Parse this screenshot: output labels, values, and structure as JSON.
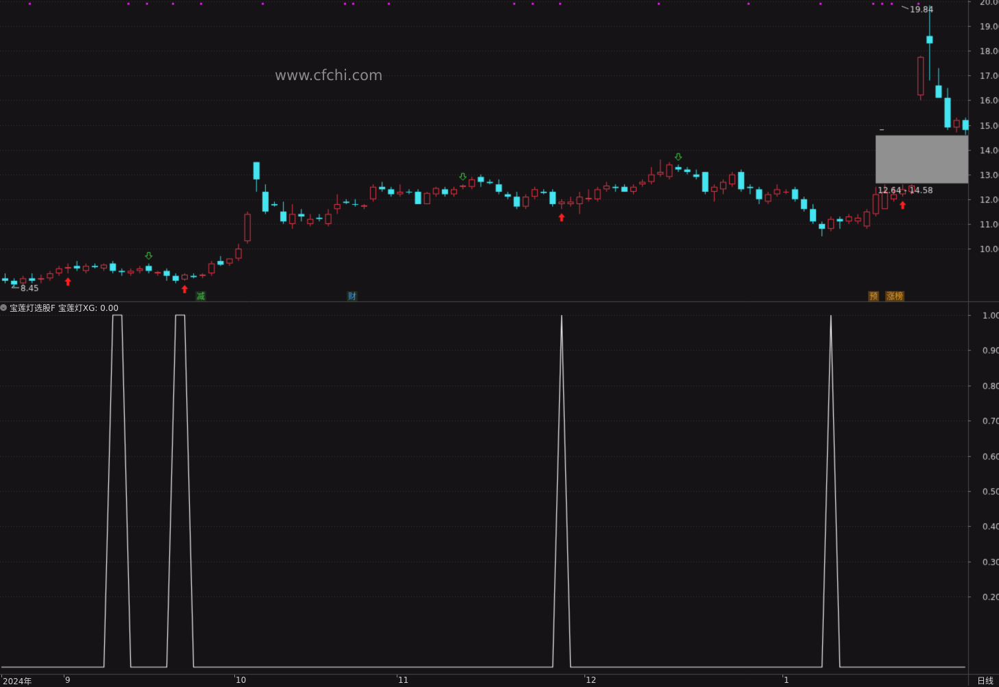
{
  "watermark": "www.cfchi.com",
  "colors": {
    "background": "#151315",
    "up": "#e8394a",
    "down": "#44e4f0",
    "grid": "#3a3a3a",
    "marker_dots": "#d024d8",
    "signal_line": "#ffffff",
    "zone": "#909090"
  },
  "price_axis": {
    "ticks": [
      "10.00",
      "11.00",
      "12.00",
      "13.00",
      "14.00",
      "15.00",
      "16.00",
      "17.00",
      "18.00",
      "19.00",
      "20.00"
    ],
    "range": [
      8.0,
      20.0
    ]
  },
  "price_annotations": {
    "high_label": "19.84",
    "low_label": "8.45",
    "zone_label": "12.64 - 14.58",
    "zone_low": 12.64,
    "zone_high": 14.58
  },
  "event_tags": [
    {
      "text": "减",
      "color": "#49c74f"
    },
    {
      "text": "财",
      "color": "#3aa0ff"
    },
    {
      "text": "预",
      "color": "#e0a030"
    },
    {
      "text": "涨榜",
      "color": "#e0a030"
    }
  ],
  "indicator": {
    "toggle_icon": "chevron-down-icon",
    "name": "宝莲灯选股F",
    "series_label": "宝莲灯XG: 0.00",
    "axis_ticks": [
      "0.20",
      "0.30",
      "0.40",
      "0.50",
      "0.60",
      "0.70",
      "0.80",
      "0.90",
      "1.00"
    ]
  },
  "x_axis": {
    "labels": [
      "2024年",
      "9",
      "10",
      "11",
      "12",
      "1"
    ]
  },
  "period_label": "日线",
  "chart_data": [
    {
      "type": "candlestick",
      "title": "",
      "ylim": [
        8.0,
        20.0
      ],
      "ohlc": [
        [
          8.8,
          9.0,
          8.6,
          8.7
        ],
        [
          8.7,
          8.8,
          8.45,
          8.55
        ],
        [
          8.6,
          8.9,
          8.5,
          8.8
        ],
        [
          8.8,
          9.0,
          8.6,
          8.7
        ],
        [
          8.75,
          8.95,
          8.6,
          8.8
        ],
        [
          8.8,
          9.1,
          8.7,
          9.0
        ],
        [
          9.0,
          9.3,
          8.9,
          9.2
        ],
        [
          9.2,
          9.4,
          9.0,
          9.25
        ],
        [
          9.3,
          9.5,
          9.1,
          9.2
        ],
        [
          9.1,
          9.4,
          9.0,
          9.3
        ],
        [
          9.3,
          9.4,
          9.2,
          9.25
        ],
        [
          9.2,
          9.4,
          9.1,
          9.35
        ],
        [
          9.4,
          9.5,
          9.0,
          9.1
        ],
        [
          9.1,
          9.2,
          8.9,
          9.05
        ],
        [
          9.0,
          9.2,
          8.9,
          9.1
        ],
        [
          9.1,
          9.3,
          9.0,
          9.2
        ],
        [
          9.3,
          9.4,
          9.0,
          9.1
        ],
        [
          9.0,
          9.1,
          8.9,
          9.05
        ],
        [
          9.1,
          9.2,
          8.7,
          8.9
        ],
        [
          8.9,
          9.0,
          8.6,
          8.7
        ],
        [
          8.75,
          9.0,
          8.7,
          8.95
        ],
        [
          8.9,
          9.0,
          8.8,
          8.85
        ],
        [
          8.9,
          9.0,
          8.8,
          8.95
        ],
        [
          9.0,
          9.5,
          8.9,
          9.4
        ],
        [
          9.5,
          9.7,
          9.3,
          9.35
        ],
        [
          9.4,
          9.6,
          9.3,
          9.6
        ],
        [
          9.6,
          10.2,
          9.5,
          10.0
        ],
        [
          10.3,
          11.5,
          10.2,
          11.4
        ],
        [
          13.5,
          13.5,
          12.3,
          12.8
        ],
        [
          12.3,
          12.6,
          11.4,
          11.5
        ],
        [
          11.8,
          11.9,
          11.7,
          11.75
        ],
        [
          11.5,
          11.9,
          11.0,
          11.1
        ],
        [
          11.0,
          11.8,
          10.8,
          11.4
        ],
        [
          11.4,
          11.6,
          11.1,
          11.3
        ],
        [
          11.0,
          11.4,
          10.9,
          11.2
        ],
        [
          11.25,
          11.4,
          11.1,
          11.2
        ],
        [
          11.0,
          11.6,
          10.9,
          11.4
        ],
        [
          11.6,
          12.2,
          11.4,
          11.8
        ],
        [
          11.9,
          12.0,
          11.8,
          11.85
        ],
        [
          11.8,
          12.0,
          11.7,
          11.78
        ],
        [
          11.7,
          11.8,
          11.6,
          11.75
        ],
        [
          12.0,
          12.6,
          11.9,
          12.5
        ],
        [
          12.5,
          12.7,
          12.3,
          12.4
        ],
        [
          12.4,
          12.5,
          12.1,
          12.2
        ],
        [
          12.2,
          12.6,
          12.1,
          12.3
        ],
        [
          12.3,
          12.4,
          12.2,
          12.28
        ],
        [
          12.3,
          12.4,
          11.8,
          11.8
        ],
        [
          11.8,
          12.3,
          11.8,
          12.25
        ],
        [
          12.2,
          12.5,
          12.1,
          12.45
        ],
        [
          12.4,
          12.5,
          12.1,
          12.2
        ],
        [
          12.2,
          12.5,
          12.1,
          12.4
        ],
        [
          12.5,
          12.6,
          12.4,
          12.55
        ],
        [
          12.5,
          12.9,
          12.4,
          12.8
        ],
        [
          12.9,
          13.0,
          12.5,
          12.7
        ],
        [
          12.7,
          12.8,
          12.6,
          12.65
        ],
        [
          12.6,
          12.8,
          12.2,
          12.3
        ],
        [
          12.2,
          12.3,
          12.0,
          12.1
        ],
        [
          12.1,
          12.3,
          11.6,
          11.7
        ],
        [
          11.7,
          12.2,
          11.6,
          12.1
        ],
        [
          12.1,
          12.5,
          12.0,
          12.4
        ],
        [
          12.3,
          12.4,
          12.2,
          12.25
        ],
        [
          12.3,
          12.4,
          11.7,
          11.8
        ],
        [
          11.8,
          12.0,
          11.6,
          11.9
        ],
        [
          11.8,
          12.1,
          11.7,
          11.9
        ],
        [
          11.8,
          12.3,
          11.4,
          12.1
        ],
        [
          12.0,
          12.4,
          11.9,
          12.05
        ],
        [
          12.0,
          12.5,
          11.9,
          12.4
        ],
        [
          12.4,
          12.7,
          12.3,
          12.55
        ],
        [
          12.5,
          12.6,
          12.3,
          12.45
        ],
        [
          12.5,
          12.6,
          12.3,
          12.3
        ],
        [
          12.3,
          12.6,
          12.2,
          12.5
        ],
        [
          12.6,
          12.8,
          12.5,
          12.7
        ],
        [
          12.7,
          13.3,
          12.6,
          13.0
        ],
        [
          13.0,
          13.6,
          12.9,
          13.1
        ],
        [
          12.9,
          13.5,
          12.8,
          13.4
        ],
        [
          13.3,
          13.4,
          13.1,
          13.2
        ],
        [
          13.2,
          13.3,
          13.0,
          13.1
        ],
        [
          13.0,
          13.2,
          12.8,
          12.9
        ],
        [
          13.1,
          13.1,
          12.2,
          12.3
        ],
        [
          12.3,
          12.6,
          11.9,
          12.5
        ],
        [
          12.4,
          12.8,
          12.2,
          12.7
        ],
        [
          12.6,
          13.1,
          12.5,
          13.0
        ],
        [
          13.1,
          13.2,
          12.3,
          12.4
        ],
        [
          12.5,
          12.6,
          12.2,
          12.45
        ],
        [
          12.4,
          12.5,
          11.8,
          12.0
        ],
        [
          11.9,
          12.3,
          11.8,
          12.2
        ],
        [
          12.2,
          12.6,
          12.1,
          12.4
        ],
        [
          12.3,
          12.4,
          12.2,
          12.3
        ],
        [
          12.4,
          12.5,
          11.9,
          12.0
        ],
        [
          12.0,
          12.1,
          11.5,
          11.6
        ],
        [
          11.6,
          11.8,
          11.0,
          11.1
        ],
        [
          11.0,
          11.1,
          10.5,
          10.8
        ],
        [
          10.8,
          11.3,
          10.7,
          11.2
        ],
        [
          11.2,
          11.3,
          10.8,
          11.1
        ],
        [
          11.1,
          11.4,
          11.0,
          11.3
        ],
        [
          11.1,
          11.4,
          11.0,
          11.25
        ],
        [
          10.9,
          11.6,
          10.8,
          11.5
        ],
        [
          11.4,
          12.5,
          11.3,
          12.2
        ],
        [
          11.6,
          12.6,
          11.6,
          12.3
        ],
        [
          12.0,
          12.5,
          11.9,
          12.2
        ],
        [
          12.2,
          12.6,
          12.1,
          12.4
        ],
        [
          12.3,
          12.6,
          12.2,
          12.55
        ],
        [
          16.2,
          17.8,
          16.0,
          17.75
        ],
        [
          18.6,
          19.84,
          16.8,
          18.3
        ],
        [
          16.6,
          17.3,
          16.2,
          16.1
        ],
        [
          16.1,
          16.5,
          14.8,
          14.9
        ],
        [
          14.9,
          15.3,
          14.7,
          15.2
        ],
        [
          15.2,
          15.3,
          14.6,
          14.8
        ]
      ],
      "signal_up_arrows": [
        7,
        20,
        62,
        100
      ],
      "signal_down_arrows": [
        16,
        51,
        75
      ]
    },
    {
      "type": "line",
      "title": "",
      "series": [
        {
          "name": "宝莲灯XG",
          "peaks": [
            {
              "from_bar": 12,
              "to_bar": 13,
              "value": 1.0
            },
            {
              "from_bar": 19,
              "to_bar": 20,
              "value": 1.0
            },
            {
              "from_bar": 62,
              "to_bar": 62,
              "value": 1.0
            },
            {
              "from_bar": 92,
              "to_bar": 92,
              "value": 1.0
            }
          ],
          "baseline": 0.0
        }
      ],
      "ylim": [
        0.0,
        1.0
      ]
    }
  ]
}
